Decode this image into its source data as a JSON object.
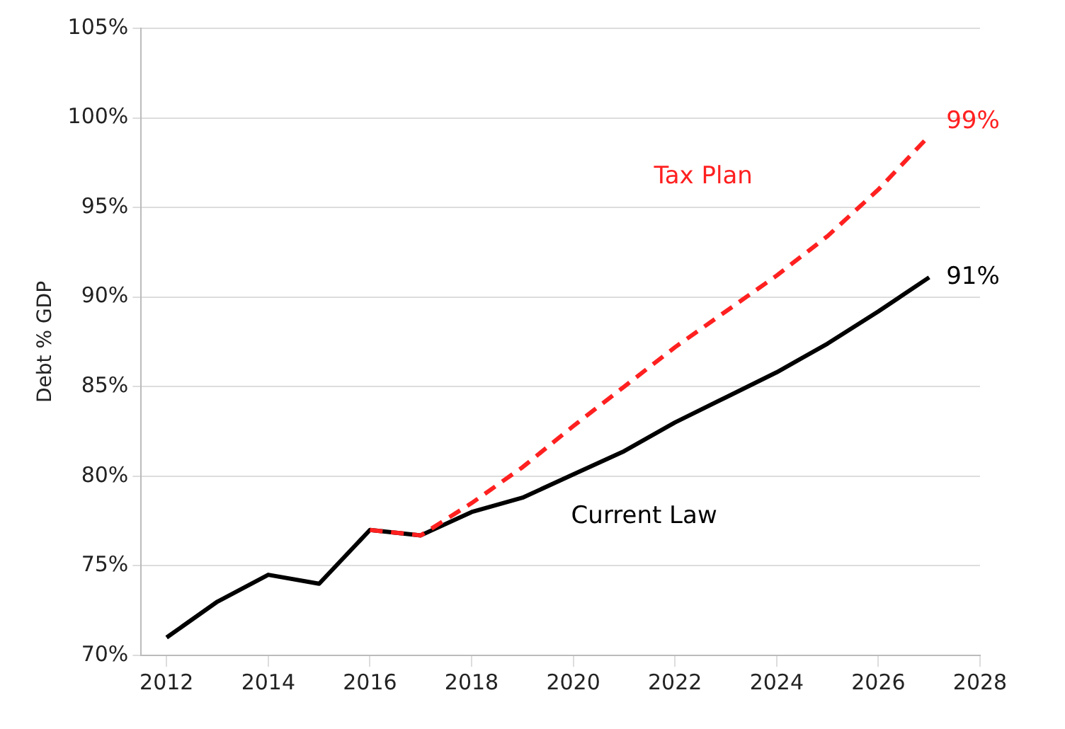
{
  "chart_data": {
    "type": "line",
    "ylabel": "Debt % GDP",
    "xlim": [
      2011.5,
      2028
    ],
    "xticks": [
      2012,
      2014,
      2016,
      2018,
      2020,
      2022,
      2024,
      2026,
      2028
    ],
    "ylim": [
      70,
      105
    ],
    "yticks": [
      {
        "value": 70,
        "label": "70%"
      },
      {
        "value": 75,
        "label": "75%"
      },
      {
        "value": 80,
        "label": "80%"
      },
      {
        "value": 85,
        "label": "85%"
      },
      {
        "value": 90,
        "label": "90%"
      },
      {
        "value": 95,
        "label": "95%"
      },
      {
        "value": 100,
        "label": "100%"
      },
      {
        "value": 105,
        "label": "105%"
      }
    ],
    "grid": "y",
    "legend": false,
    "marker": "none",
    "series": [
      {
        "name": "Tax Plan",
        "color": "#ff2020",
        "line_style": "dashed",
        "x": [
          2016,
          2017,
          2018,
          2019,
          2020,
          2021,
          2022,
          2023,
          2024,
          2025,
          2026,
          2027
        ],
        "values": [
          77,
          76.7,
          78.5,
          80.5,
          82.8,
          85,
          87.2,
          89.2,
          91.2,
          93.4,
          96,
          99
        ],
        "value_labels": [
          null,
          null,
          null,
          null,
          null,
          null,
          null,
          null,
          null,
          null,
          null,
          "99%"
        ]
      },
      {
        "name": "Current Law",
        "color": "#000000",
        "line_style": "solid",
        "x": [
          2012,
          2013,
          2014,
          2015,
          2016,
          2017,
          2018,
          2019,
          2020,
          2021,
          2022,
          2023,
          2024,
          2025,
          2026,
          2027
        ],
        "values": [
          71,
          73,
          74.5,
          74,
          77,
          76.7,
          78,
          78.8,
          80.1,
          81.4,
          83,
          84.4,
          85.8,
          87.4,
          89.2,
          91.1
        ],
        "value_labels": [
          null,
          null,
          null,
          null,
          null,
          null,
          null,
          null,
          null,
          null,
          null,
          null,
          null,
          null,
          null,
          "91%"
        ]
      }
    ]
  }
}
